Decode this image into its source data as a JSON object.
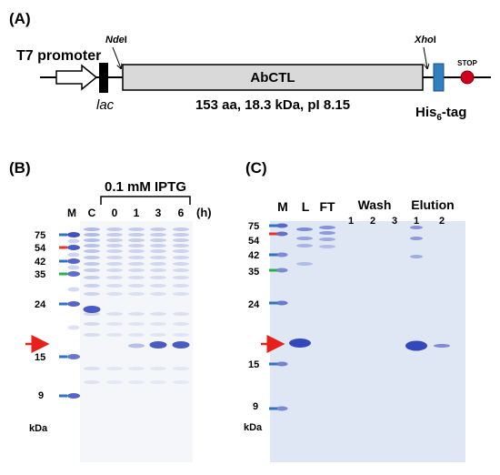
{
  "panel_a": {
    "label": "(A)",
    "promoter": "T7 promoter",
    "lac": "lac",
    "site_left_prefix": "Nde",
    "site_left_suffix": "I",
    "site_right_prefix": "Xho",
    "site_right_suffix": "I",
    "gene": "AbCTL",
    "info": "153 aa, 18.3 kDa, pI 8.15",
    "tag_prefix": "His",
    "tag_sub": "6",
    "tag_suffix": "-tag",
    "stop": "STOP",
    "colors": {
      "gene_fill": "#d9d9d9",
      "his_tag": "#2f7fc1",
      "stop": "#d0021b"
    }
  },
  "panel_b": {
    "label": "(B)",
    "treatment": "0.1 mM IPTG",
    "time_unit": "(h)",
    "lanes": [
      "M",
      "C",
      "0",
      "1",
      "3",
      "6"
    ],
    "markers": [
      "75",
      "54",
      "42",
      "35",
      "24",
      "15",
      "9"
    ],
    "unit": "kDa"
  },
  "panel_c": {
    "label": "(C)",
    "lanes_top": [
      "M",
      "L",
      "FT"
    ],
    "wash_title": "Wash",
    "wash_lanes": [
      "1",
      "2",
      "3"
    ],
    "elution_title": "Elution",
    "elution_lanes": [
      "1",
      "2"
    ],
    "markers": [
      "75",
      "54",
      "42",
      "35",
      "24",
      "15",
      "9"
    ],
    "unit": "kDa"
  },
  "colors": {
    "marker_red": "#e8352b",
    "marker_blue": "#2f74c0",
    "marker_green": "#2bb04a",
    "arrow": "#e8201b",
    "band": "#2a3fb8",
    "gel_bg": "#dfe6f4"
  }
}
